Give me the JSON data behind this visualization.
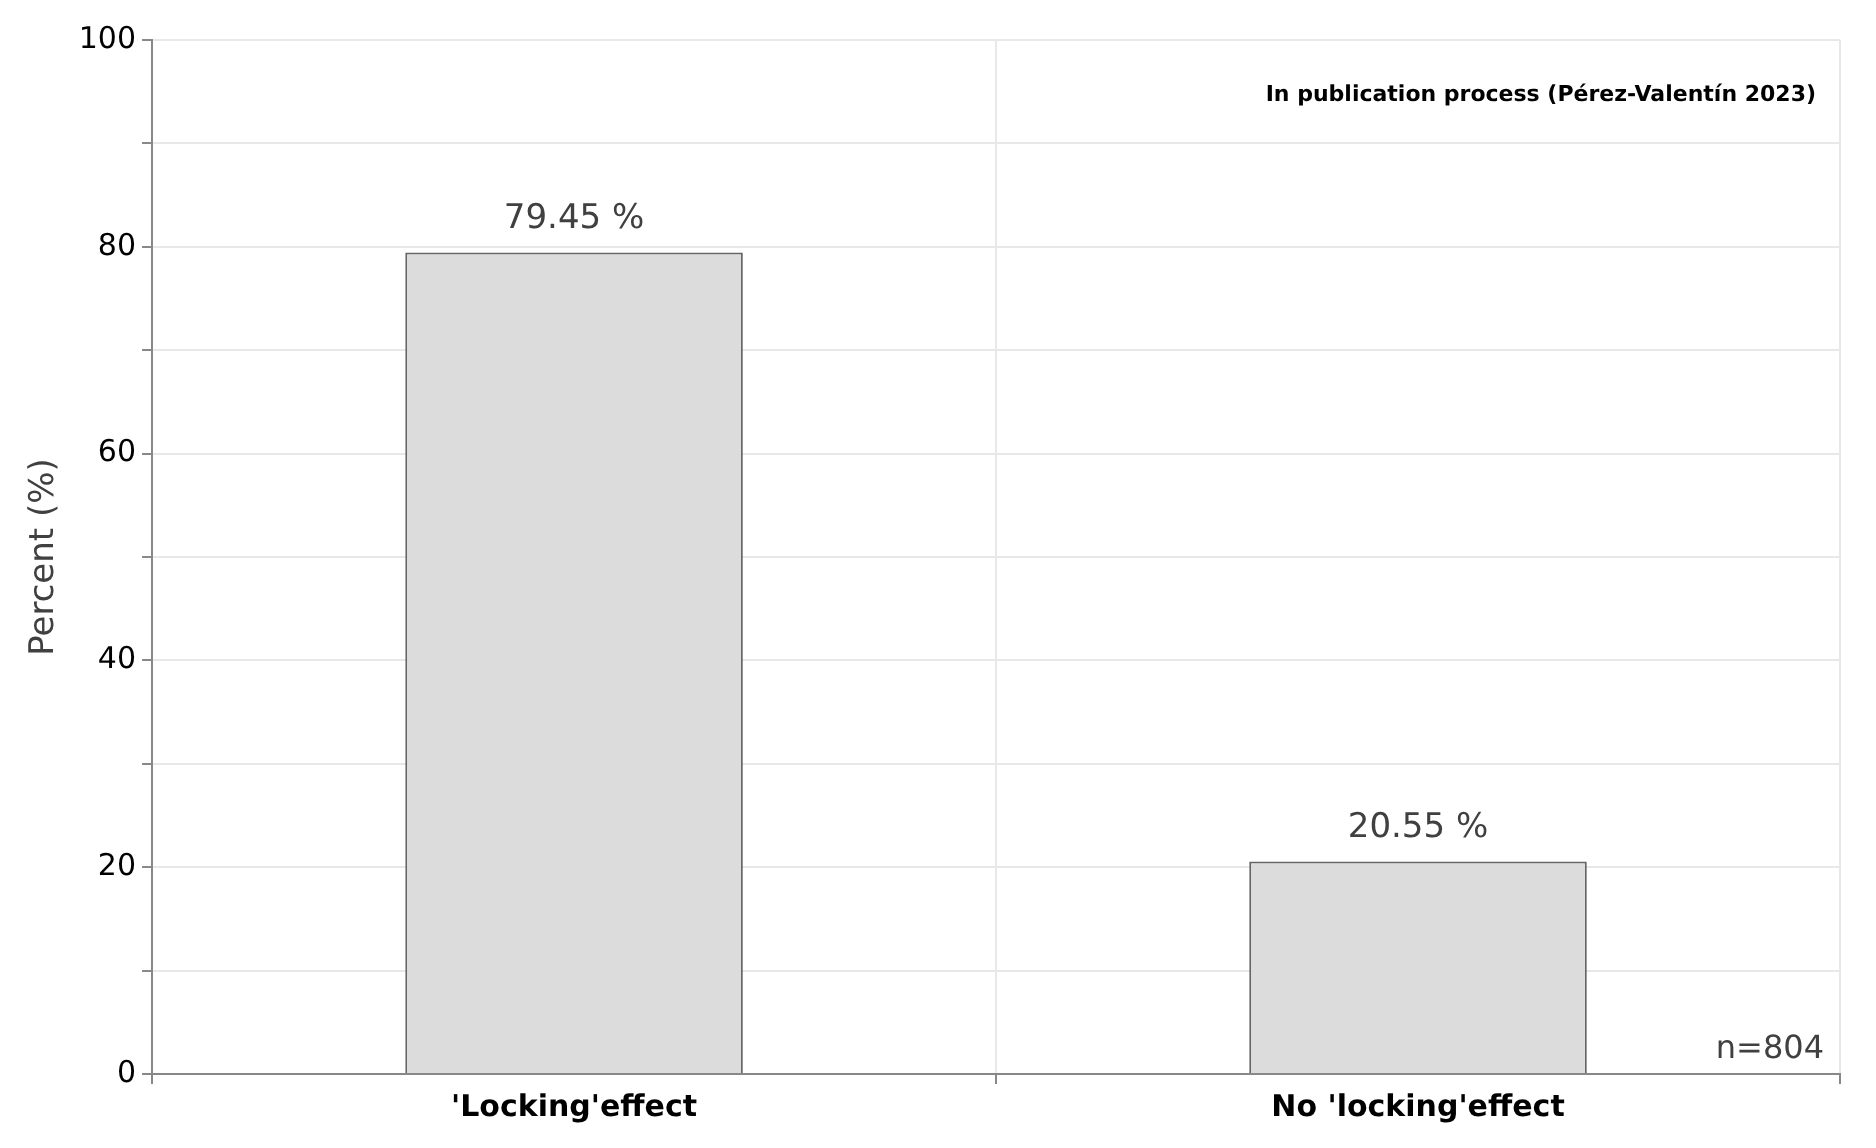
{
  "chart_data": {
    "type": "bar",
    "ylabel": "Percent (%)",
    "categories": [
      "'Locking'effect",
      "No 'locking'effect"
    ],
    "values": [
      79.45,
      20.55
    ],
    "value_labels": [
      "79.45 %",
      "20.55 %"
    ],
    "color": "#dcdcdc",
    "ylim": [
      0,
      100
    ],
    "yticks": [
      0,
      {
        "value": 10,
        "label": null
      },
      20,
      {
        "value": 30,
        "label": null
      },
      40,
      {
        "value": 50,
        "label": null
      },
      60,
      {
        "value": 70,
        "label": null
      },
      80,
      {
        "value": 90,
        "label": null
      },
      100
    ],
    "grid": true,
    "annotations": [
      "In publication process (Pérez-Valentín 2023)",
      "n=804"
    ]
  }
}
